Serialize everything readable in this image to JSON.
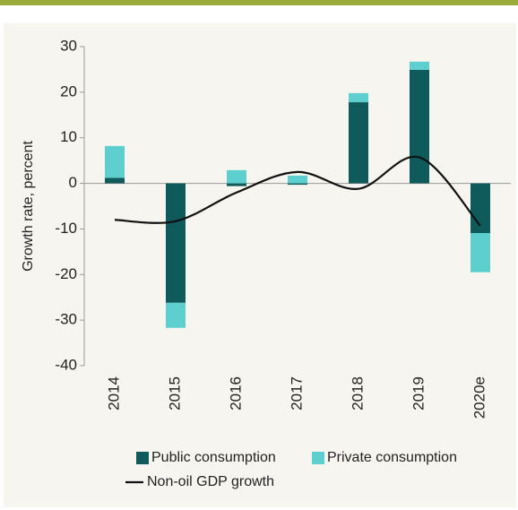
{
  "chart_data": {
    "type": "bar",
    "categories": [
      "2014",
      "2015",
      "2016",
      "2017",
      "2018",
      "2019",
      "2020e"
    ],
    "y_label": "Growth rate, percent",
    "series": [
      {
        "name": "Public consumption",
        "color": "#0f5a5a",
        "type": "bar",
        "values": [
          1.2,
          -26.2,
          -0.6,
          -0.3,
          17.8,
          24.9,
          -10.9
        ]
      },
      {
        "name": "Private consumption",
        "color": "#5ecfcf",
        "type": "bar",
        "values": [
          7,
          -5.5,
          2.9,
          1.7,
          2,
          1.8,
          -8.6
        ]
      },
      {
        "name": "Non-oil GDP growth",
        "color": "#111111",
        "type": "line",
        "values": [
          -8,
          -8.3,
          -2,
          2.5,
          -1.2,
          5.7,
          -9.3
        ]
      }
    ],
    "ylim": [
      -40,
      30
    ],
    "yticks": [
      -40,
      -30,
      -20,
      -10,
      0,
      10,
      20,
      30
    ],
    "stacked": true
  }
}
